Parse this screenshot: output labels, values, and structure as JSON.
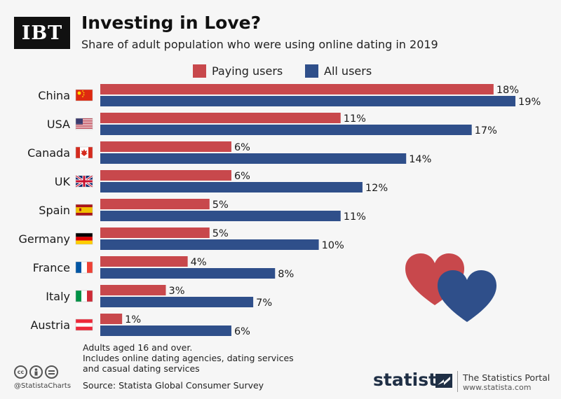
{
  "logo": {
    "text": "IBT"
  },
  "title": "Investing in Love?",
  "subtitle": "Share of adult population who were using online dating in 2019",
  "colors": {
    "paying": "#c8484c",
    "all": "#2f4f8a",
    "text": "#1a1a1a"
  },
  "chart_data": {
    "type": "bar",
    "orientation": "horizontal",
    "categories": [
      "China",
      "USA",
      "Canada",
      "UK",
      "Spain",
      "Germany",
      "France",
      "Italy",
      "Austria"
    ],
    "series": [
      {
        "name": "Paying users",
        "values": [
          18,
          11,
          6,
          6,
          5,
          5,
          4,
          3,
          1
        ],
        "labels": [
          "18%",
          "11%",
          "6%",
          "6%",
          "5%",
          "5%",
          "4%",
          "3%",
          "1%"
        ]
      },
      {
        "name": "All users",
        "values": [
          19,
          17,
          14,
          12,
          11,
          10,
          8,
          7,
          6
        ],
        "labels": [
          "19%",
          "17%",
          "14%",
          "12%",
          "11%",
          "10%",
          "8%",
          "7%",
          "6%"
        ]
      }
    ],
    "xlim": [
      0,
      19
    ],
    "grid": false,
    "legend": "top",
    "flags": [
      "china-flag-icon",
      "usa-flag-icon",
      "canada-flag-icon",
      "uk-flag-icon",
      "spain-flag-icon",
      "germany-flag-icon",
      "france-flag-icon",
      "italy-flag-icon",
      "austria-flag-icon"
    ]
  },
  "footnote": {
    "lines": [
      "Adults aged 16 and over.",
      "Includes online dating agencies, dating services",
      "and casual dating services"
    ]
  },
  "source": "Source: Statista Global Consumer Survey",
  "handle": "@StatistaCharts",
  "brand": {
    "name": "statista",
    "portal": "The Statistics Portal",
    "url": "www.statista.com"
  }
}
